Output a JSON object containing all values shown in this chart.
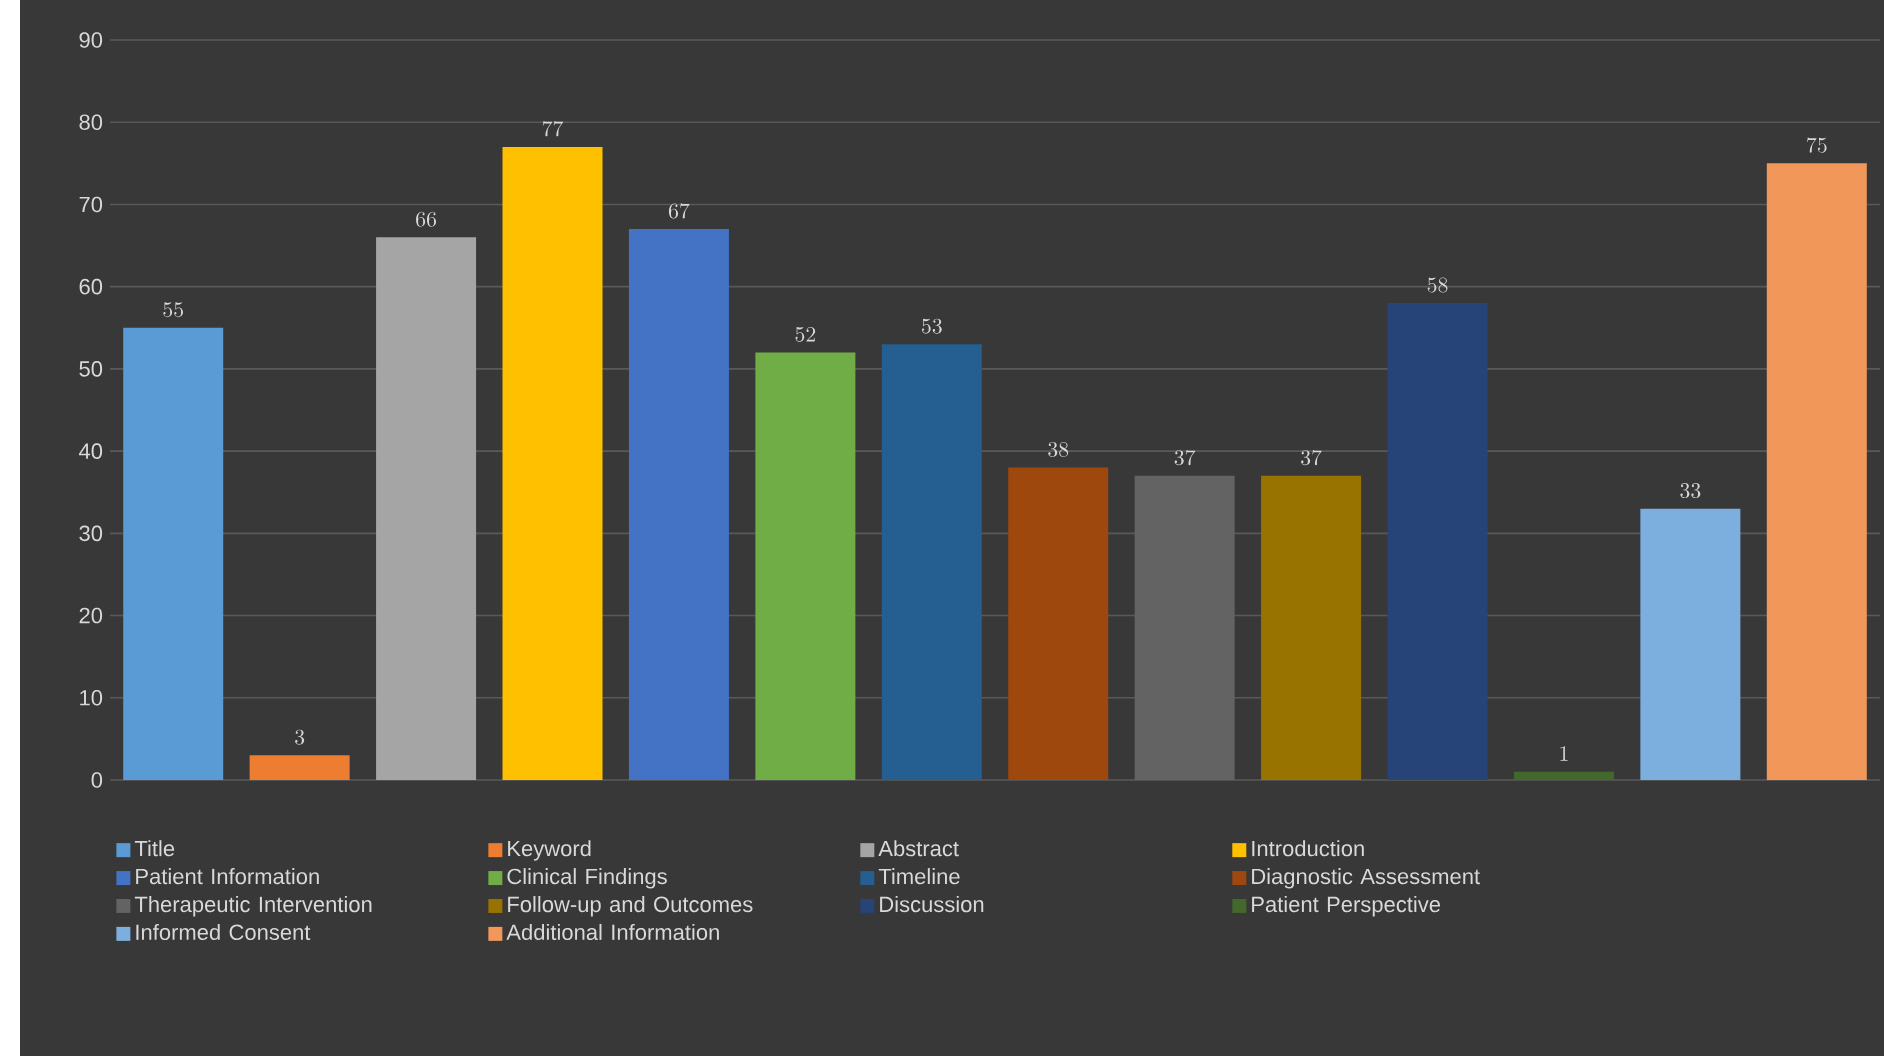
{
  "chart_data": {
    "type": "bar",
    "categories": [
      null,
      null,
      null,
      null,
      null,
      null,
      null,
      null,
      null,
      null,
      null,
      null,
      null,
      null
    ],
    "series": [
      {
        "name": "Title",
        "color": "#5b9bd5",
        "values": [
          55,
          null,
          null,
          null,
          null,
          null,
          null,
          null,
          null,
          null,
          null,
          null,
          null,
          null
        ]
      },
      {
        "name": "Keyword",
        "color": "#ed7d31",
        "values": [
          null,
          3,
          null,
          null,
          null,
          null,
          null,
          null,
          null,
          null,
          null,
          null,
          null,
          null
        ]
      },
      {
        "name": "Abstract",
        "color": "#a5a5a5",
        "values": [
          null,
          null,
          66,
          null,
          null,
          null,
          null,
          null,
          null,
          null,
          null,
          null,
          null,
          null
        ]
      },
      {
        "name": "Introduction",
        "color": "#ffc000",
        "values": [
          null,
          null,
          null,
          77,
          null,
          null,
          null,
          null,
          null,
          null,
          null,
          null,
          null,
          null
        ]
      },
      {
        "name": "Patient Information",
        "color": "#4472c4",
        "values": [
          null,
          null,
          null,
          null,
          67,
          null,
          null,
          null,
          null,
          null,
          null,
          null,
          null,
          null
        ]
      },
      {
        "name": "Clinical Findings",
        "color": "#70ad47",
        "values": [
          null,
          null,
          null,
          null,
          null,
          52,
          null,
          null,
          null,
          null,
          null,
          null,
          null,
          null
        ]
      },
      {
        "name": "Timeline",
        "color": "#255e91",
        "values": [
          null,
          null,
          null,
          null,
          null,
          null,
          53,
          null,
          null,
          null,
          null,
          null,
          null,
          null
        ]
      },
      {
        "name": "Diagnostic Assessment",
        "color": "#9e480e",
        "values": [
          null,
          null,
          null,
          null,
          null,
          null,
          null,
          38,
          null,
          null,
          null,
          null,
          null,
          null
        ]
      },
      {
        "name": "Therapeutic Intervention",
        "color": "#636363",
        "values": [
          null,
          null,
          null,
          null,
          null,
          null,
          null,
          null,
          37,
          null,
          null,
          null,
          null,
          null
        ]
      },
      {
        "name": "Follow-up and Outcomes",
        "color": "#997300",
        "values": [
          null,
          null,
          null,
          null,
          null,
          null,
          null,
          null,
          null,
          37,
          null,
          null,
          null,
          null
        ]
      },
      {
        "name": "Discussion",
        "color": "#264478",
        "values": [
          null,
          null,
          null,
          null,
          null,
          null,
          null,
          null,
          null,
          null,
          58,
          null,
          null,
          null
        ]
      },
      {
        "name": "Patient Perspective",
        "color": "#43682b",
        "values": [
          null,
          null,
          null,
          null,
          null,
          null,
          null,
          null,
          null,
          null,
          null,
          1,
          null,
          null
        ]
      },
      {
        "name": "Informed Consent",
        "color": "#7cafdd",
        "values": [
          null,
          null,
          null,
          null,
          null,
          null,
          null,
          null,
          null,
          null,
          null,
          null,
          33,
          null
        ]
      },
      {
        "name": "Additional Information",
        "color": "#f1975a",
        "values": [
          null,
          null,
          null,
          null,
          null,
          null,
          null,
          null,
          null,
          null,
          null,
          null,
          null,
          75
        ]
      }
    ],
    "ylim": [
      0,
      90
    ],
    "yticks": [
      0,
      10,
      20,
      30,
      40,
      50,
      60,
      70,
      80,
      90
    ],
    "grid": "y",
    "data_labels": true,
    "legend": "bottom"
  }
}
